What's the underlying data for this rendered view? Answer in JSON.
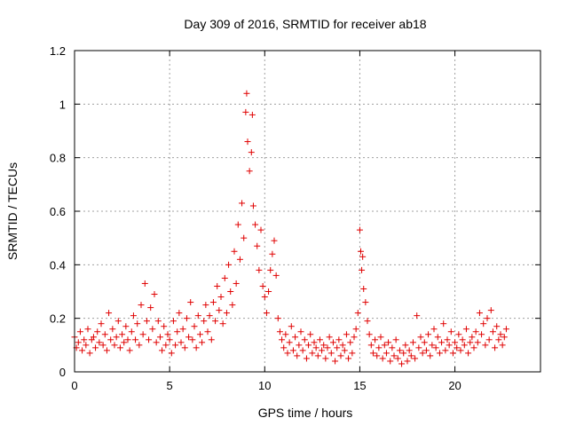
{
  "chart_data": {
    "type": "scatter",
    "title": "Day 309 of 2016, SRMTID for receiver ab18",
    "xlabel": "GPS time / hours",
    "ylabel": "SRMTID / TECUs",
    "xlim": [
      0,
      24.5
    ],
    "ylim": [
      0,
      1.2
    ],
    "xticks": [
      0,
      5,
      10,
      15,
      20
    ],
    "yticks": [
      0,
      0.2,
      0.4,
      0.6,
      0.8,
      1,
      1.2
    ],
    "xtick_labels": [
      "0",
      "5",
      "10",
      "15",
      "20"
    ],
    "ytick_labels": [
      "0",
      "0.2",
      "0.4",
      "0.6",
      "0.8",
      "1",
      "1.2"
    ],
    "grid": true,
    "marker": "+",
    "color": "#e00000",
    "series": [
      {
        "name": "SRMTID",
        "points": [
          [
            0.0,
            0.13
          ],
          [
            0.1,
            0.09
          ],
          [
            0.2,
            0.11
          ],
          [
            0.3,
            0.15
          ],
          [
            0.4,
            0.08
          ],
          [
            0.5,
            0.12
          ],
          [
            0.6,
            0.1
          ],
          [
            0.7,
            0.16
          ],
          [
            0.8,
            0.07
          ],
          [
            0.9,
            0.12
          ],
          [
            1.0,
            0.13
          ],
          [
            1.1,
            0.09
          ],
          [
            1.2,
            0.15
          ],
          [
            1.3,
            0.11
          ],
          [
            1.4,
            0.18
          ],
          [
            1.5,
            0.1
          ],
          [
            1.6,
            0.14
          ],
          [
            1.7,
            0.08
          ],
          [
            1.8,
            0.22
          ],
          [
            1.9,
            0.12
          ],
          [
            2.0,
            0.16
          ],
          [
            2.1,
            0.1
          ],
          [
            2.2,
            0.13
          ],
          [
            2.3,
            0.19
          ],
          [
            2.4,
            0.09
          ],
          [
            2.5,
            0.14
          ],
          [
            2.6,
            0.11
          ],
          [
            2.7,
            0.17
          ],
          [
            2.8,
            0.12
          ],
          [
            2.9,
            0.08
          ],
          [
            3.0,
            0.15
          ],
          [
            3.1,
            0.21
          ],
          [
            3.2,
            0.12
          ],
          [
            3.3,
            0.18
          ],
          [
            3.4,
            0.1
          ],
          [
            3.5,
            0.25
          ],
          [
            3.6,
            0.14
          ],
          [
            3.7,
            0.33
          ],
          [
            3.8,
            0.19
          ],
          [
            3.9,
            0.12
          ],
          [
            4.0,
            0.24
          ],
          [
            4.1,
            0.16
          ],
          [
            4.2,
            0.29
          ],
          [
            4.3,
            0.11
          ],
          [
            4.4,
            0.19
          ],
          [
            4.5,
            0.13
          ],
          [
            4.6,
            0.08
          ],
          [
            4.7,
            0.17
          ],
          [
            4.8,
            0.1
          ],
          [
            4.9,
            0.14
          ],
          [
            5.0,
            0.12
          ],
          [
            5.1,
            0.07
          ],
          [
            5.2,
            0.19
          ],
          [
            5.3,
            0.1
          ],
          [
            5.4,
            0.15
          ],
          [
            5.5,
            0.22
          ],
          [
            5.6,
            0.11
          ],
          [
            5.7,
            0.16
          ],
          [
            5.8,
            0.09
          ],
          [
            5.9,
            0.2
          ],
          [
            6.0,
            0.13
          ],
          [
            6.1,
            0.26
          ],
          [
            6.2,
            0.12
          ],
          [
            6.3,
            0.17
          ],
          [
            6.4,
            0.09
          ],
          [
            6.5,
            0.21
          ],
          [
            6.6,
            0.14
          ],
          [
            6.7,
            0.11
          ],
          [
            6.8,
            0.19
          ],
          [
            6.9,
            0.25
          ],
          [
            7.0,
            0.15
          ],
          [
            7.1,
            0.21
          ],
          [
            7.2,
            0.12
          ],
          [
            7.3,
            0.26
          ],
          [
            7.4,
            0.19
          ],
          [
            7.5,
            0.32
          ],
          [
            7.6,
            0.23
          ],
          [
            7.7,
            0.28
          ],
          [
            7.8,
            0.18
          ],
          [
            7.9,
            0.35
          ],
          [
            8.0,
            0.22
          ],
          [
            8.1,
            0.4
          ],
          [
            8.2,
            0.3
          ],
          [
            8.3,
            0.25
          ],
          [
            8.4,
            0.45
          ],
          [
            8.5,
            0.33
          ],
          [
            8.6,
            0.55
          ],
          [
            8.7,
            0.42
          ],
          [
            8.8,
            0.63
          ],
          [
            8.9,
            0.5
          ],
          [
            9.0,
            0.97
          ],
          [
            9.05,
            1.04
          ],
          [
            9.1,
            0.86
          ],
          [
            9.2,
            0.75
          ],
          [
            9.3,
            0.82
          ],
          [
            9.35,
            0.96
          ],
          [
            9.4,
            0.62
          ],
          [
            9.5,
            0.55
          ],
          [
            9.6,
            0.47
          ],
          [
            9.7,
            0.38
          ],
          [
            9.8,
            0.53
          ],
          [
            9.9,
            0.32
          ],
          [
            10.0,
            0.28
          ],
          [
            10.1,
            0.22
          ],
          [
            10.2,
            0.3
          ],
          [
            10.3,
            0.38
          ],
          [
            10.4,
            0.44
          ],
          [
            10.5,
            0.49
          ],
          [
            10.6,
            0.36
          ],
          [
            10.7,
            0.2
          ],
          [
            10.8,
            0.15
          ],
          [
            10.9,
            0.12
          ],
          [
            11.0,
            0.09
          ],
          [
            11.1,
            0.14
          ],
          [
            11.2,
            0.07
          ],
          [
            11.3,
            0.11
          ],
          [
            11.4,
            0.17
          ],
          [
            11.5,
            0.08
          ],
          [
            11.6,
            0.13
          ],
          [
            11.7,
            0.06
          ],
          [
            11.8,
            0.1
          ],
          [
            11.9,
            0.15
          ],
          [
            12.0,
            0.08
          ],
          [
            12.1,
            0.12
          ],
          [
            12.2,
            0.05
          ],
          [
            12.3,
            0.1
          ],
          [
            12.4,
            0.14
          ],
          [
            12.5,
            0.07
          ],
          [
            12.6,
            0.11
          ],
          [
            12.7,
            0.09
          ],
          [
            12.8,
            0.06
          ],
          [
            12.9,
            0.12
          ],
          [
            13.0,
            0.08
          ],
          [
            13.1,
            0.1
          ],
          [
            13.2,
            0.05
          ],
          [
            13.3,
            0.09
          ],
          [
            13.4,
            0.13
          ],
          [
            13.5,
            0.07
          ],
          [
            13.6,
            0.11
          ],
          [
            13.7,
            0.04
          ],
          [
            13.8,
            0.09
          ],
          [
            13.9,
            0.12
          ],
          [
            14.0,
            0.06
          ],
          [
            14.1,
            0.1
          ],
          [
            14.2,
            0.08
          ],
          [
            14.3,
            0.14
          ],
          [
            14.4,
            0.05
          ],
          [
            14.5,
            0.11
          ],
          [
            14.6,
            0.07
          ],
          [
            14.7,
            0.13
          ],
          [
            14.8,
            0.16
          ],
          [
            14.9,
            0.22
          ],
          [
            15.0,
            0.53
          ],
          [
            15.05,
            0.45
          ],
          [
            15.1,
            0.38
          ],
          [
            15.15,
            0.43
          ],
          [
            15.2,
            0.31
          ],
          [
            15.3,
            0.26
          ],
          [
            15.4,
            0.19
          ],
          [
            15.5,
            0.14
          ],
          [
            15.6,
            0.1
          ],
          [
            15.7,
            0.07
          ],
          [
            15.8,
            0.12
          ],
          [
            15.9,
            0.06
          ],
          [
            16.0,
            0.09
          ],
          [
            16.1,
            0.13
          ],
          [
            16.2,
            0.05
          ],
          [
            16.3,
            0.1
          ],
          [
            16.4,
            0.07
          ],
          [
            16.5,
            0.11
          ],
          [
            16.6,
            0.04
          ],
          [
            16.7,
            0.09
          ],
          [
            16.8,
            0.06
          ],
          [
            16.9,
            0.12
          ],
          [
            17.0,
            0.05
          ],
          [
            17.1,
            0.08
          ],
          [
            17.2,
            0.03
          ],
          [
            17.3,
            0.07
          ],
          [
            17.4,
            0.1
          ],
          [
            17.5,
            0.04
          ],
          [
            17.6,
            0.08
          ],
          [
            17.7,
            0.06
          ],
          [
            17.8,
            0.11
          ],
          [
            17.9,
            0.05
          ],
          [
            18.0,
            0.21
          ],
          [
            18.1,
            0.09
          ],
          [
            18.2,
            0.13
          ],
          [
            18.3,
            0.07
          ],
          [
            18.4,
            0.11
          ],
          [
            18.5,
            0.08
          ],
          [
            18.6,
            0.14
          ],
          [
            18.7,
            0.06
          ],
          [
            18.8,
            0.1
          ],
          [
            18.9,
            0.16
          ],
          [
            19.0,
            0.09
          ],
          [
            19.1,
            0.13
          ],
          [
            19.2,
            0.07
          ],
          [
            19.3,
            0.11
          ],
          [
            19.4,
            0.18
          ],
          [
            19.5,
            0.08
          ],
          [
            19.6,
            0.12
          ],
          [
            19.7,
            0.1
          ],
          [
            19.8,
            0.15
          ],
          [
            19.9,
            0.07
          ],
          [
            20.0,
            0.11
          ],
          [
            20.1,
            0.09
          ],
          [
            20.2,
            0.14
          ],
          [
            20.3,
            0.08
          ],
          [
            20.4,
            0.12
          ],
          [
            20.5,
            0.1
          ],
          [
            20.6,
            0.16
          ],
          [
            20.7,
            0.07
          ],
          [
            20.8,
            0.11
          ],
          [
            20.9,
            0.13
          ],
          [
            21.0,
            0.09
          ],
          [
            21.1,
            0.15
          ],
          [
            21.2,
            0.11
          ],
          [
            21.3,
            0.22
          ],
          [
            21.4,
            0.14
          ],
          [
            21.5,
            0.18
          ],
          [
            21.6,
            0.1
          ],
          [
            21.7,
            0.2
          ],
          [
            21.8,
            0.12
          ],
          [
            21.9,
            0.23
          ],
          [
            22.0,
            0.15
          ],
          [
            22.1,
            0.09
          ],
          [
            22.2,
            0.17
          ],
          [
            22.3,
            0.12
          ],
          [
            22.4,
            0.14
          ],
          [
            22.5,
            0.1
          ],
          [
            22.6,
            0.13
          ],
          [
            22.7,
            0.16
          ]
        ]
      }
    ]
  }
}
